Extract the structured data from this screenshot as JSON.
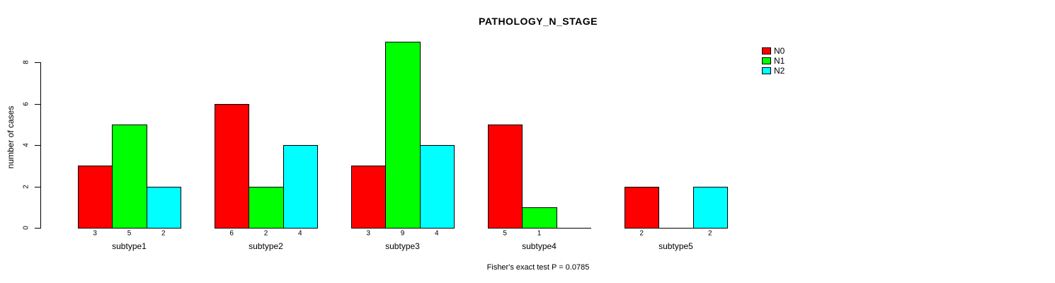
{
  "chart_data": {
    "type": "bar",
    "title": "PATHOLOGY_N_STAGE",
    "ylabel": "number of cases",
    "xlabel": "",
    "footnote": "Fisher's exact test P = 0.0785",
    "categories": [
      "subtype1",
      "subtype2",
      "subtype3",
      "subtype4",
      "subtype5"
    ],
    "series": [
      {
        "name": "N0",
        "color": "#ff0000",
        "values": [
          3,
          6,
          3,
          5,
          2
        ]
      },
      {
        "name": "N1",
        "color": "#00ff00",
        "values": [
          5,
          2,
          9,
          1,
          0
        ]
      },
      {
        "name": "N2",
        "color": "#00ffff",
        "values": [
          2,
          4,
          4,
          0,
          2
        ]
      }
    ],
    "bar_value_labels_shown": true,
    "yticks": [
      0,
      2,
      4,
      6,
      8
    ],
    "ylim": [
      0,
      9
    ],
    "grid": false,
    "legend_position": "top-right",
    "colors": {
      "background": "#ffffff",
      "axis": "#000000",
      "text": "#000000"
    }
  }
}
